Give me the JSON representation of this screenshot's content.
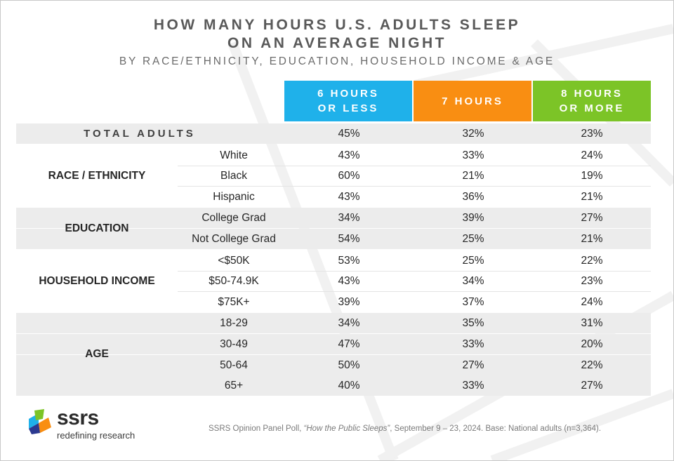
{
  "title_line1": "HOW MANY HOURS U.S. ADULTS SLEEP",
  "title_line2": "ON AN AVERAGE NIGHT",
  "subtitle": "BY RACE/ETHNICITY, EDUCATION, HOUSEHOLD INCOME & AGE",
  "colors": {
    "col1": "#1fb1ea",
    "col2": "#f98e12",
    "col3": "#7cc427",
    "title": "#595959",
    "shade": "#ececec"
  },
  "chart_data": {
    "type": "table",
    "title": "HOW MANY HOURS U.S. ADULTS SLEEP ON AN AVERAGE NIGHT",
    "subtitle": "BY RACE/ETHNICITY, EDUCATION, HOUSEHOLD INCOME & AGE",
    "columns": [
      {
        "line1": "6 HOURS",
        "line2": "OR LESS"
      },
      {
        "line1": "7 HOURS",
        "line2": ""
      },
      {
        "line1": "8 HOURS",
        "line2": "OR MORE"
      }
    ],
    "total": {
      "label": "TOTAL ADULTS",
      "values": [
        "45%",
        "32%",
        "23%"
      ]
    },
    "groups": [
      {
        "name": "RACE / ETHNICITY",
        "rows": [
          {
            "label": "White",
            "values": [
              "43%",
              "33%",
              "24%"
            ]
          },
          {
            "label": "Black",
            "values": [
              "60%",
              "21%",
              "19%"
            ]
          },
          {
            "label": "Hispanic",
            "values": [
              "43%",
              "36%",
              "21%"
            ]
          }
        ]
      },
      {
        "name": "EDUCATION",
        "rows": [
          {
            "label": "College Grad",
            "values": [
              "34%",
              "39%",
              "27%"
            ]
          },
          {
            "label": "Not College Grad",
            "values": [
              "54%",
              "25%",
              "21%"
            ]
          }
        ]
      },
      {
        "name": "HOUSEHOLD INCOME",
        "rows": [
          {
            "label": "<$50K",
            "values": [
              "53%",
              "25%",
              "22%"
            ]
          },
          {
            "label": "$50-74.9K",
            "values": [
              "43%",
              "34%",
              "23%"
            ]
          },
          {
            "label": "$75K+",
            "values": [
              "39%",
              "37%",
              "24%"
            ]
          }
        ]
      },
      {
        "name": "AGE",
        "rows": [
          {
            "label": "18-29",
            "values": [
              "34%",
              "35%",
              "31%"
            ]
          },
          {
            "label": "30-49",
            "values": [
              "47%",
              "33%",
              "20%"
            ]
          },
          {
            "label": "50-64",
            "values": [
              "50%",
              "27%",
              "22%"
            ]
          },
          {
            "label": "65+",
            "values": [
              "40%",
              "33%",
              "27%"
            ]
          }
        ]
      }
    ]
  },
  "logo": {
    "word": "ssrs",
    "tagline": "redefining research"
  },
  "source": {
    "prefix": "SSRS Opinion Panel Poll, ",
    "italic": "“How the Public Sleeps”",
    "suffix": ", September 9 – 23, 2024. Base: National adults (n=3,364)."
  }
}
